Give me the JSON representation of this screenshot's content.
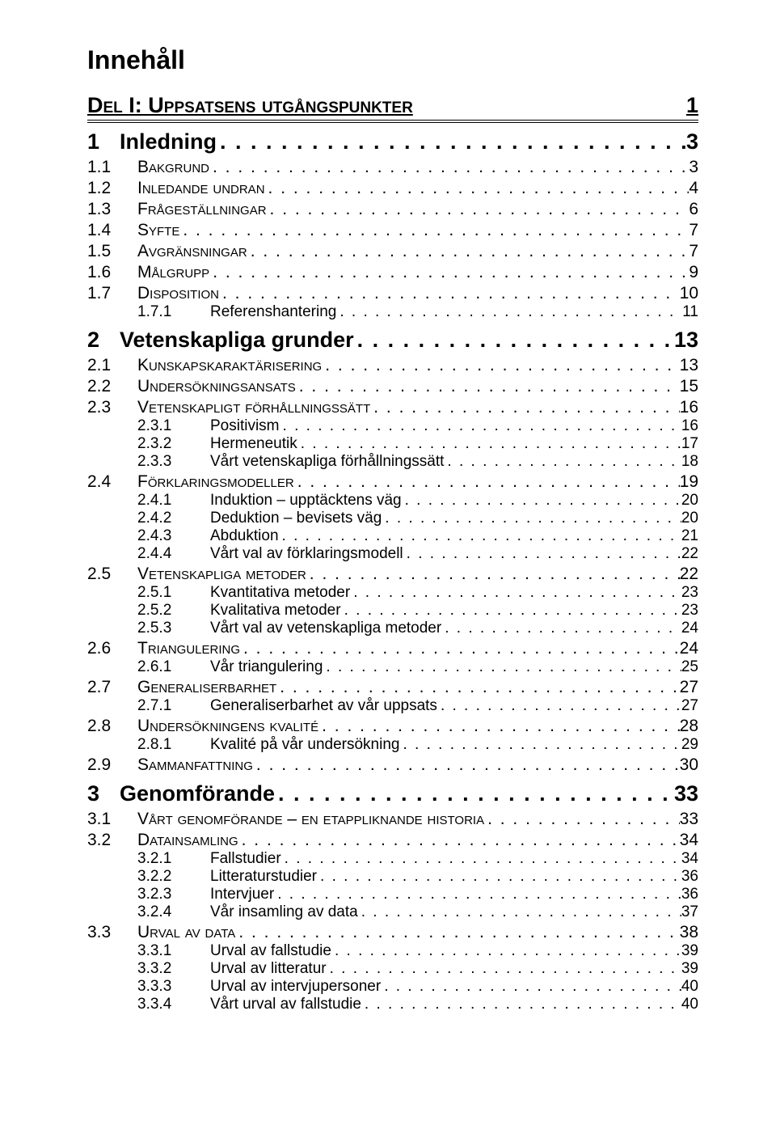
{
  "title": "Innehåll",
  "del": {
    "label": "Del I: Uppsatsens utgångspunkter",
    "page": "1"
  },
  "entries": [
    {
      "level": 1,
      "num": "1",
      "text": "Inledning",
      "page": "3"
    },
    {
      "level": 2,
      "num": "1.1",
      "text": "Bakgrund",
      "page": "3"
    },
    {
      "level": 2,
      "num": "1.2",
      "text": "Inledande undran",
      "page": "4"
    },
    {
      "level": 2,
      "num": "1.3",
      "text": "Frågeställningar",
      "page": "6"
    },
    {
      "level": 2,
      "num": "1.4",
      "text": "Syfte",
      "page": "7"
    },
    {
      "level": 2,
      "num": "1.5",
      "text": "Avgränsningar",
      "page": "7"
    },
    {
      "level": 2,
      "num": "1.6",
      "text": "Målgrupp",
      "page": "9"
    },
    {
      "level": 2,
      "num": "1.7",
      "text": "Disposition",
      "page": "10"
    },
    {
      "level": 3,
      "num": "1.7.1",
      "text": "Referenshantering",
      "page": "11"
    },
    {
      "level": 1,
      "num": "2",
      "text": "Vetenskapliga grunder",
      "page": "13"
    },
    {
      "level": 2,
      "num": "2.1",
      "text": "Kunskapskaraktärisering",
      "page": "13"
    },
    {
      "level": 2,
      "num": "2.2",
      "text": "Undersökningsansats",
      "page": "15"
    },
    {
      "level": 2,
      "num": "2.3",
      "text": "Vetenskapligt förhållningssätt",
      "page": "16"
    },
    {
      "level": 3,
      "num": "2.3.1",
      "text": "Positivism",
      "page": "16"
    },
    {
      "level": 3,
      "num": "2.3.2",
      "text": "Hermeneutik",
      "page": "17"
    },
    {
      "level": 3,
      "num": "2.3.3",
      "text": "Vårt vetenskapliga förhållningssätt",
      "page": "18"
    },
    {
      "level": 2,
      "num": "2.4",
      "text": "Förklaringsmodeller",
      "page": "19"
    },
    {
      "level": 3,
      "num": "2.4.1",
      "text": "Induktion – upptäcktens väg",
      "page": "20"
    },
    {
      "level": 3,
      "num": "2.4.2",
      "text": "Deduktion – bevisets väg",
      "page": "20"
    },
    {
      "level": 3,
      "num": "2.4.3",
      "text": "Abduktion",
      "page": "21"
    },
    {
      "level": 3,
      "num": "2.4.4",
      "text": "Vårt val av förklaringsmodell",
      "page": "22"
    },
    {
      "level": 2,
      "num": "2.5",
      "text": "Vetenskapliga metoder",
      "page": "22"
    },
    {
      "level": 3,
      "num": "2.5.1",
      "text": "Kvantitativa metoder",
      "page": "23"
    },
    {
      "level": 3,
      "num": "2.5.2",
      "text": "Kvalitativa metoder",
      "page": "23"
    },
    {
      "level": 3,
      "num": "2.5.3",
      "text": "Vårt val av vetenskapliga metoder",
      "page": "24"
    },
    {
      "level": 2,
      "num": "2.6",
      "text": "Triangulering",
      "page": "24"
    },
    {
      "level": 3,
      "num": "2.6.1",
      "text": "Vår triangulering",
      "page": "25"
    },
    {
      "level": 2,
      "num": "2.7",
      "text": "Generaliserbarhet",
      "page": "27"
    },
    {
      "level": 3,
      "num": "2.7.1",
      "text": "Generaliserbarhet av vår uppsats",
      "page": "27"
    },
    {
      "level": 2,
      "num": "2.8",
      "text": "Undersökningens kvalité",
      "page": "28"
    },
    {
      "level": 3,
      "num": "2.8.1",
      "text": "Kvalité på vår undersökning",
      "page": "29"
    },
    {
      "level": 2,
      "num": "2.9",
      "text": "Sammanfattning",
      "page": "30"
    },
    {
      "level": 1,
      "num": "3",
      "text": "Genomförande",
      "page": "33"
    },
    {
      "level": 2,
      "num": "3.1",
      "text": "Vårt genomförande – en etappliknande historia",
      "page": "33"
    },
    {
      "level": 2,
      "num": "3.2",
      "text": "Datainsamling",
      "page": "34"
    },
    {
      "level": 3,
      "num": "3.2.1",
      "text": "Fallstudier",
      "page": "34"
    },
    {
      "level": 3,
      "num": "3.2.2",
      "text": "Litteraturstudier",
      "page": "36"
    },
    {
      "level": 3,
      "num": "3.2.3",
      "text": "Intervjuer",
      "page": "36"
    },
    {
      "level": 3,
      "num": "3.2.4",
      "text": "Vår insamling av data",
      "page": "37"
    },
    {
      "level": 2,
      "num": "3.3",
      "text": "Urval av data",
      "page": "38"
    },
    {
      "level": 3,
      "num": "3.3.1",
      "text": "Urval av fallstudie",
      "page": "39"
    },
    {
      "level": 3,
      "num": "3.3.2",
      "text": "Urval av litteratur",
      "page": "39"
    },
    {
      "level": 3,
      "num": "3.3.3",
      "text": "Urval av intervjupersoner",
      "page": "40"
    },
    {
      "level": 3,
      "num": "3.3.4",
      "text": "Vårt urval av fallstudie",
      "page": "40"
    }
  ]
}
